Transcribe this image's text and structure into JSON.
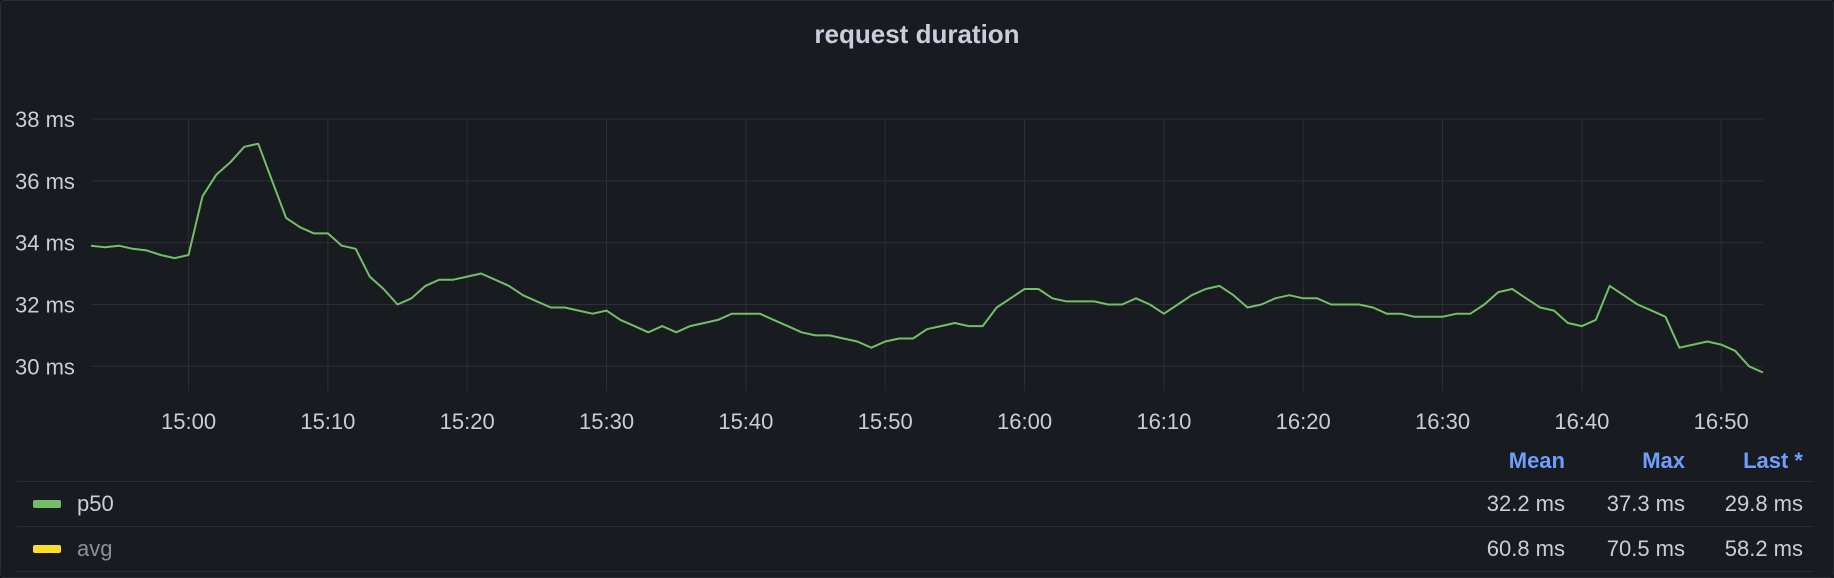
{
  "chart_data": {
    "type": "line",
    "title": "request duration",
    "xlabel": "",
    "ylabel": "",
    "x_ticks": [
      "15:00",
      "15:10",
      "15:20",
      "15:30",
      "15:40",
      "15:50",
      "16:00",
      "16:10",
      "16:20",
      "16:30",
      "16:40",
      "16:50"
    ],
    "y_ticks": [
      "30 ms",
      "32 ms",
      "34 ms",
      "36 ms",
      "38 ms"
    ],
    "ylim": [
      29.2,
      38
    ],
    "x_range_minutes": [
      "14:53",
      "16:53"
    ],
    "grid": true,
    "series": [
      {
        "name": "p50",
        "color": "#73bf69",
        "points": [
          [
            "14:53",
            33.9
          ],
          [
            "14:54",
            33.85
          ],
          [
            "14:55",
            33.9
          ],
          [
            "14:56",
            33.8
          ],
          [
            "14:57",
            33.75
          ],
          [
            "14:58",
            33.6
          ],
          [
            "14:59",
            33.5
          ],
          [
            "15:00",
            33.6
          ],
          [
            "15:01",
            35.5
          ],
          [
            "15:02",
            36.2
          ],
          [
            "15:03",
            36.6
          ],
          [
            "15:04",
            37.1
          ],
          [
            "15:05",
            37.2
          ],
          [
            "15:06",
            36.0
          ],
          [
            "15:07",
            34.8
          ],
          [
            "15:08",
            34.5
          ],
          [
            "15:09",
            34.3
          ],
          [
            "15:10",
            34.3
          ],
          [
            "15:11",
            33.9
          ],
          [
            "15:12",
            33.8
          ],
          [
            "15:13",
            32.9
          ],
          [
            "15:14",
            32.5
          ],
          [
            "15:15",
            32.0
          ],
          [
            "15:16",
            32.2
          ],
          [
            "15:17",
            32.6
          ],
          [
            "15:18",
            32.8
          ],
          [
            "15:19",
            32.8
          ],
          [
            "15:20",
            32.9
          ],
          [
            "15:21",
            33.0
          ],
          [
            "15:22",
            32.8
          ],
          [
            "15:23",
            32.6
          ],
          [
            "15:24",
            32.3
          ],
          [
            "15:25",
            32.1
          ],
          [
            "15:26",
            31.9
          ],
          [
            "15:27",
            31.9
          ],
          [
            "15:28",
            31.8
          ],
          [
            "15:29",
            31.7
          ],
          [
            "15:30",
            31.8
          ],
          [
            "15:31",
            31.5
          ],
          [
            "15:32",
            31.3
          ],
          [
            "15:33",
            31.1
          ],
          [
            "15:34",
            31.3
          ],
          [
            "15:35",
            31.1
          ],
          [
            "15:36",
            31.3
          ],
          [
            "15:37",
            31.4
          ],
          [
            "15:38",
            31.5
          ],
          [
            "15:39",
            31.7
          ],
          [
            "15:40",
            31.7
          ],
          [
            "15:41",
            31.7
          ],
          [
            "15:42",
            31.5
          ],
          [
            "15:43",
            31.3
          ],
          [
            "15:44",
            31.1
          ],
          [
            "15:45",
            31.0
          ],
          [
            "15:46",
            31.0
          ],
          [
            "15:47",
            30.9
          ],
          [
            "15:48",
            30.8
          ],
          [
            "15:49",
            30.6
          ],
          [
            "15:50",
            30.8
          ],
          [
            "15:51",
            30.9
          ],
          [
            "15:52",
            30.9
          ],
          [
            "15:53",
            31.2
          ],
          [
            "15:54",
            31.3
          ],
          [
            "15:55",
            31.4
          ],
          [
            "15:56",
            31.3
          ],
          [
            "15:57",
            31.3
          ],
          [
            "15:58",
            31.9
          ],
          [
            "15:59",
            32.2
          ],
          [
            "16:00",
            32.5
          ],
          [
            "16:01",
            32.5
          ],
          [
            "16:02",
            32.2
          ],
          [
            "16:03",
            32.1
          ],
          [
            "16:04",
            32.1
          ],
          [
            "16:05",
            32.1
          ],
          [
            "16:06",
            32.0
          ],
          [
            "16:07",
            32.0
          ],
          [
            "16:08",
            32.2
          ],
          [
            "16:09",
            32.0
          ],
          [
            "16:10",
            31.7
          ],
          [
            "16:11",
            32.0
          ],
          [
            "16:12",
            32.3
          ],
          [
            "16:13",
            32.5
          ],
          [
            "16:14",
            32.6
          ],
          [
            "16:15",
            32.3
          ],
          [
            "16:16",
            31.9
          ],
          [
            "16:17",
            32.0
          ],
          [
            "16:18",
            32.2
          ],
          [
            "16:19",
            32.3
          ],
          [
            "16:20",
            32.2
          ],
          [
            "16:21",
            32.2
          ],
          [
            "16:22",
            32.0
          ],
          [
            "16:23",
            32.0
          ],
          [
            "16:24",
            32.0
          ],
          [
            "16:25",
            31.9
          ],
          [
            "16:26",
            31.7
          ],
          [
            "16:27",
            31.7
          ],
          [
            "16:28",
            31.6
          ],
          [
            "16:29",
            31.6
          ],
          [
            "16:30",
            31.6
          ],
          [
            "16:31",
            31.7
          ],
          [
            "16:32",
            31.7
          ],
          [
            "16:33",
            32.0
          ],
          [
            "16:34",
            32.4
          ],
          [
            "16:35",
            32.5
          ],
          [
            "16:36",
            32.2
          ],
          [
            "16:37",
            31.9
          ],
          [
            "16:38",
            31.8
          ],
          [
            "16:39",
            31.4
          ],
          [
            "16:40",
            31.3
          ],
          [
            "16:41",
            31.5
          ],
          [
            "16:42",
            32.6
          ],
          [
            "16:43",
            32.3
          ],
          [
            "16:44",
            32.0
          ],
          [
            "16:45",
            31.8
          ],
          [
            "16:46",
            31.6
          ],
          [
            "16:47",
            30.6
          ],
          [
            "16:48",
            30.7
          ],
          [
            "16:49",
            30.8
          ],
          [
            "16:50",
            30.7
          ],
          [
            "16:51",
            30.5
          ],
          [
            "16:52",
            30.0
          ],
          [
            "16:53",
            29.8
          ]
        ]
      }
    ]
  },
  "legend": {
    "headers": {
      "mean": "Mean",
      "max": "Max",
      "last": "Last *"
    },
    "rows": [
      {
        "name": "p50",
        "color": "#73bf69",
        "mean": "32.2 ms",
        "max": "37.3 ms",
        "last": "29.8 ms",
        "dim": false
      },
      {
        "name": "avg",
        "color": "#fade2a",
        "mean": "60.8 ms",
        "max": "70.5 ms",
        "last": "58.2 ms",
        "dim": true
      }
    ]
  }
}
